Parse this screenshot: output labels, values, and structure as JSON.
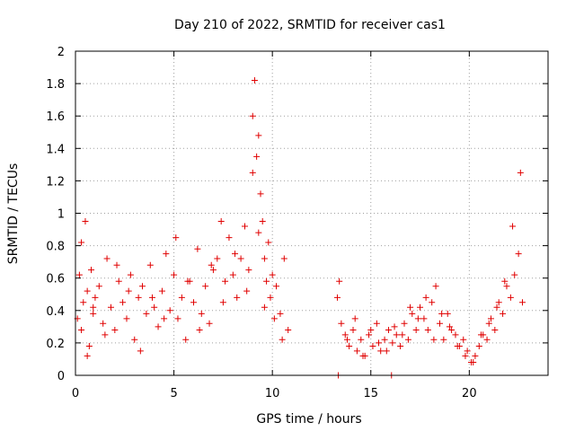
{
  "chart_data": {
    "type": "scatter",
    "title": "Day 210 of 2022, SRMTID for receiver cas1",
    "xlabel": "GPS time / hours",
    "ylabel": "SRMTID / TECUs",
    "xlim": [
      0,
      24
    ],
    "ylim": [
      0,
      2
    ],
    "xticks": [
      0,
      5,
      10,
      15,
      20
    ],
    "xtick_labels": [
      "0",
      "5",
      "10",
      "15",
      "20"
    ],
    "yticks": [
      0,
      0.2,
      0.4,
      0.6,
      0.8,
      1,
      1.2,
      1.4,
      1.6,
      1.8,
      2
    ],
    "ytick_labels": [
      "0",
      "0.2",
      "0.4",
      "0.6",
      "0.8",
      "1",
      "1.2",
      "1.4",
      "1.6",
      "1.8",
      "2"
    ],
    "grid": true,
    "marker": "+",
    "marker_color": "#e00000",
    "series": [
      {
        "name": "SRMTID",
        "x": [
          0.1,
          0.2,
          0.3,
          0.4,
          0.5,
          0.6,
          0.7,
          0.8,
          0.9,
          1.0,
          1.2,
          1.4,
          1.6,
          1.8,
          2.0,
          2.2,
          2.4,
          2.6,
          2.8,
          3.0,
          3.2,
          3.4,
          3.6,
          3.8,
          4.0,
          4.2,
          4.4,
          4.6,
          4.8,
          5.0,
          5.2,
          5.4,
          5.6,
          5.8,
          6.0,
          6.2,
          6.4,
          6.6,
          6.8,
          7.0,
          7.2,
          7.4,
          7.6,
          7.8,
          8.0,
          8.2,
          8.4,
          8.6,
          8.8,
          9.0,
          9.1,
          9.2,
          9.3,
          9.4,
          9.5,
          9.6,
          9.7,
          9.8,
          9.9,
          10.0,
          10.2,
          10.4,
          10.6,
          10.8,
          0.3,
          0.6,
          0.9,
          1.5,
          2.1,
          2.7,
          3.3,
          3.9,
          4.5,
          5.1,
          5.7,
          6.3,
          6.9,
          7.5,
          8.1,
          8.7,
          9.0,
          9.3,
          9.6,
          10.1,
          10.5,
          13.3,
          13.5,
          13.7,
          13.9,
          14.1,
          14.3,
          14.5,
          14.7,
          14.9,
          15.1,
          15.3,
          15.5,
          15.7,
          15.9,
          16.1,
          16.3,
          16.5,
          16.7,
          16.9,
          17.1,
          17.3,
          17.5,
          17.7,
          17.9,
          18.1,
          18.3,
          18.5,
          18.7,
          18.9,
          19.1,
          19.3,
          19.5,
          19.7,
          19.9,
          20.1,
          20.3,
          20.5,
          20.7,
          20.9,
          21.1,
          21.3,
          21.5,
          21.7,
          21.9,
          22.1,
          22.3,
          22.5,
          22.7,
          13.4,
          13.8,
          14.2,
          14.6,
          15.0,
          15.4,
          15.8,
          16.2,
          16.6,
          17.0,
          17.4,
          17.8,
          18.2,
          18.6,
          19.0,
          19.4,
          19.8,
          20.2,
          20.6,
          21.0,
          21.4,
          21.8,
          22.2,
          22.6,
          13.35,
          16.05
        ],
        "y": [
          0.35,
          0.62,
          0.28,
          0.45,
          0.95,
          0.52,
          0.18,
          0.65,
          0.38,
          0.48,
          0.55,
          0.32,
          0.72,
          0.42,
          0.28,
          0.58,
          0.45,
          0.35,
          0.62,
          0.22,
          0.48,
          0.55,
          0.38,
          0.68,
          0.42,
          0.3,
          0.52,
          0.75,
          0.4,
          0.62,
          0.35,
          0.48,
          0.22,
          0.58,
          0.45,
          0.78,
          0.38,
          0.55,
          0.32,
          0.65,
          0.72,
          0.95,
          0.58,
          0.85,
          0.62,
          0.48,
          0.72,
          0.92,
          0.65,
          1.6,
          1.82,
          1.35,
          1.48,
          1.12,
          0.95,
          0.72,
          0.58,
          0.82,
          0.48,
          0.62,
          0.55,
          0.38,
          0.72,
          0.28,
          0.82,
          0.12,
          0.42,
          0.25,
          0.68,
          0.52,
          0.15,
          0.48,
          0.35,
          0.85,
          0.58,
          0.28,
          0.68,
          0.45,
          0.75,
          0.52,
          1.25,
          0.88,
          0.42,
          0.35,
          0.22,
          0.48,
          0.32,
          0.25,
          0.18,
          0.28,
          0.15,
          0.22,
          0.12,
          0.25,
          0.18,
          0.32,
          0.15,
          0.22,
          0.28,
          0.2,
          0.25,
          0.18,
          0.32,
          0.22,
          0.38,
          0.28,
          0.42,
          0.35,
          0.28,
          0.45,
          0.55,
          0.32,
          0.22,
          0.38,
          0.28,
          0.25,
          0.18,
          0.22,
          0.15,
          0.08,
          0.12,
          0.18,
          0.25,
          0.22,
          0.35,
          0.28,
          0.45,
          0.38,
          0.55,
          0.48,
          0.62,
          0.75,
          0.45,
          0.58,
          0.22,
          0.35,
          0.12,
          0.28,
          0.2,
          0.15,
          0.3,
          0.25,
          0.42,
          0.35,
          0.48,
          0.22,
          0.38,
          0.3,
          0.18,
          0.12,
          0.08,
          0.25,
          0.32,
          0.42,
          0.58,
          0.92,
          1.25,
          0.0,
          0.0
        ]
      }
    ]
  }
}
